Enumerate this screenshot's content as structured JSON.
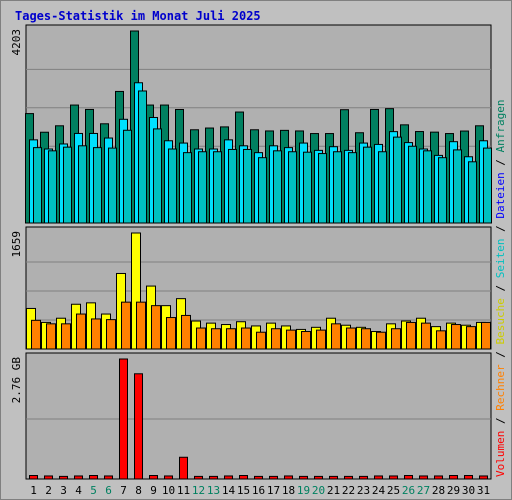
{
  "chart_data": {
    "title": "Tages-Statistik im Monat Juli 2025",
    "type": "bar",
    "colors": {
      "background": "#c0c0c0",
      "plot_background": "#b0b0b0",
      "grid": "#808080",
      "title": "#0000cc",
      "anfragen": "#008060",
      "dateien": "#00e0ff",
      "seiten": "#00c0c0",
      "besuche": "#ffff00",
      "rechner": "#ff8000",
      "volumen": "#ff0000",
      "weekend_label": "#008060",
      "weekday_label": "#000000"
    },
    "legend": [
      {
        "text": "Volumen",
        "color": "#ff0000"
      },
      {
        "text": " / ",
        "color": "#000000"
      },
      {
        "text": "Rechner",
        "color": "#ff8000"
      },
      {
        "text": " / ",
        "color": "#000000"
      },
      {
        "text": "Besuche",
        "color": "#cccc00"
      },
      {
        "text": " / ",
        "color": "#000000"
      },
      {
        "text": "Seiten",
        "color": "#00c0c0"
      },
      {
        "text": " / ",
        "color": "#000000"
      },
      {
        "text": "Dateien",
        "color": "#0000ff"
      },
      {
        "text": " / ",
        "color": "#000000"
      },
      {
        "text": "Anfragen",
        "color": "#008060"
      }
    ],
    "categories": [
      "1",
      "2",
      "3",
      "4",
      "5",
      "6",
      "7",
      "8",
      "9",
      "10",
      "11",
      "12",
      "13",
      "14",
      "15",
      "16",
      "17",
      "18",
      "19",
      "20",
      "21",
      "22",
      "23",
      "24",
      "25",
      "26",
      "27",
      "28",
      "29",
      "30",
      "31"
    ],
    "weekend_days": [
      "5",
      "6",
      "12",
      "13",
      "19",
      "20",
      "26",
      "27"
    ],
    "panels": [
      {
        "id": "anfragen-dateien-seiten",
        "ymax_label": "4203",
        "ymax": 4203,
        "gridlines": 5,
        "series": [
          {
            "name": "Anfragen",
            "key": "anfragen",
            "values": [
              2395,
              1987,
              2128,
              2582,
              2486,
              2172,
              2880,
              4203,
              2582,
              2582,
              2485,
              2041,
              2079,
              2104,
              2429,
              2041,
              2015,
              2028,
              2015,
              1958,
              1958,
              2480,
              1976,
              2486,
              2503,
              2149,
              2002,
              1989,
              1958,
              2013,
              2128
            ]
          },
          {
            "name": "Dateien",
            "key": "dateien",
            "values": [
              1820,
              1620,
              1730,
              1960,
              1960,
              1860,
              2270,
              3070,
              2310,
              1800,
              1750,
              1620,
              1620,
              1820,
              1690,
              1540,
              1690,
              1650,
              1750,
              1590,
              1670,
              1590,
              1750,
              1720,
              2000,
              1760,
              1620,
              1480,
              1780,
              1450,
              1800
            ]
          },
          {
            "name": "Seiten",
            "key": "seiten",
            "values": [
              1650,
              1580,
              1660,
              1690,
              1650,
              1640,
              2030,
              2890,
              2060,
              1620,
              1540,
              1560,
              1560,
              1610,
              1610,
              1430,
              1580,
              1560,
              1550,
              1520,
              1560,
              1540,
              1660,
              1560,
              1880,
              1680,
              1580,
              1430,
              1600,
              1340,
              1640
            ]
          }
        ]
      },
      {
        "id": "besuche-rechner",
        "ymax_label": "1659",
        "ymax": 1659,
        "gridlines": 4,
        "series": [
          {
            "name": "Besuche",
            "key": "besuche",
            "values": [
              580,
              380,
              440,
              640,
              660,
              500,
              1080,
              1659,
              900,
              620,
              720,
              400,
              370,
              350,
              390,
              330,
              370,
              330,
              280,
              310,
              440,
              340,
              310,
              250,
              360,
              400,
              440,
              320,
              370,
              340,
              380
            ]
          },
          {
            "name": "Rechner",
            "key": "rechner",
            "values": [
              410,
              360,
              360,
              500,
              430,
              420,
              670,
              670,
              620,
              450,
              480,
              300,
              290,
              290,
              300,
              240,
              290,
              270,
              250,
              270,
              360,
              300,
              290,
              240,
              290,
              380,
              370,
              260,
              350,
              320,
              380
            ]
          }
        ]
      },
      {
        "id": "volumen",
        "ymax_label": "2.76 GB",
        "ymax": 2.76,
        "unit": "GB",
        "gridlines": 2,
        "series": [
          {
            "name": "Volumen",
            "key": "volumen",
            "values": [
              0.08,
              0.07,
              0.06,
              0.07,
              0.08,
              0.07,
              2.76,
              2.42,
              0.08,
              0.07,
              0.5,
              0.06,
              0.06,
              0.07,
              0.08,
              0.06,
              0.06,
              0.07,
              0.06,
              0.06,
              0.06,
              0.06,
              0.06,
              0.07,
              0.07,
              0.08,
              0.07,
              0.07,
              0.08,
              0.08,
              0.07
            ]
          }
        ]
      }
    ]
  }
}
